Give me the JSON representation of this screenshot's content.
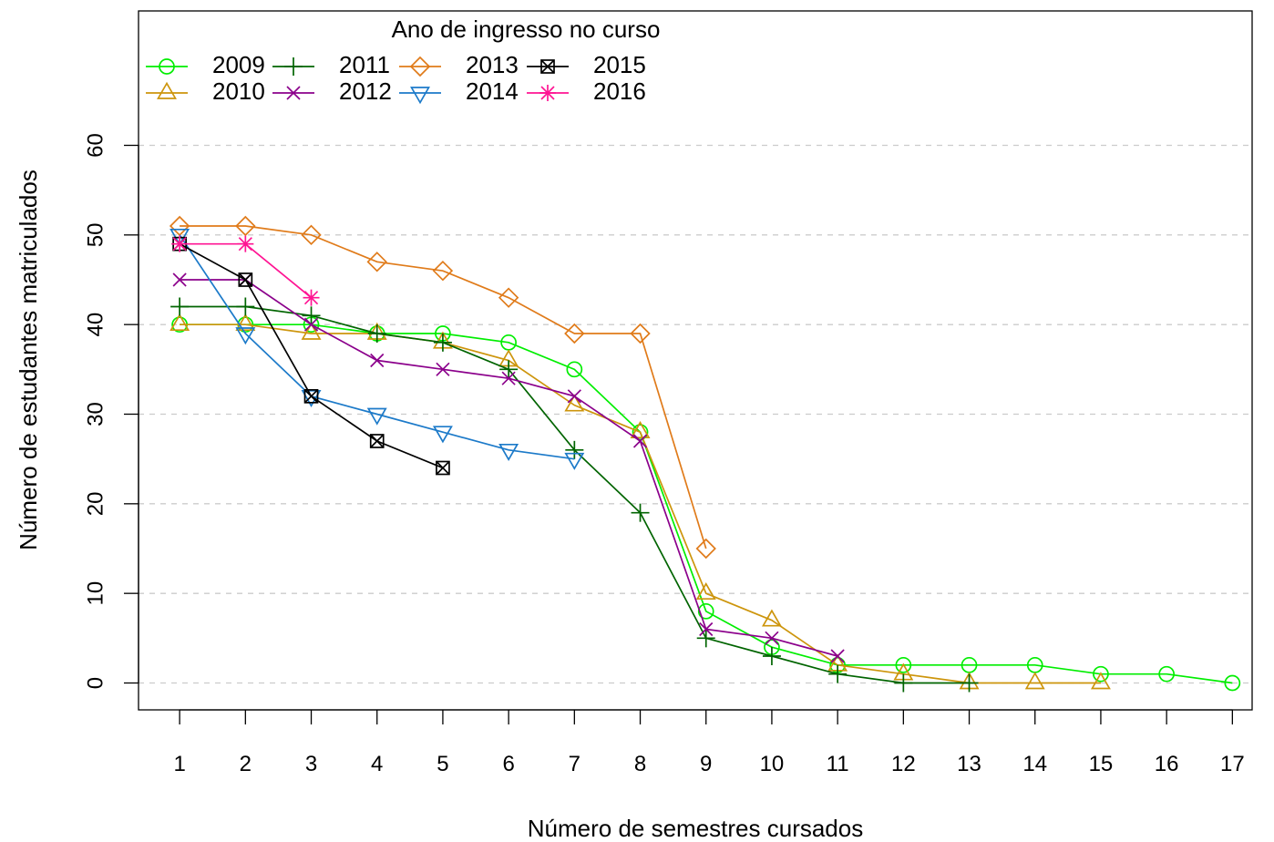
{
  "chart_data": {
    "type": "line",
    "xlabel": "Número de semestres cursados",
    "ylabel": "Número de estudantes matriculados",
    "x": [
      1,
      2,
      3,
      4,
      5,
      6,
      7,
      8,
      9,
      10,
      11,
      12,
      13,
      14,
      15,
      16,
      17
    ],
    "xlim": [
      0.375,
      17.3
    ],
    "ylim": [
      -3,
      75
    ],
    "yticks": [
      0,
      10,
      20,
      30,
      40,
      50,
      60
    ],
    "grid": "horizontal dashed",
    "legend": {
      "title": "Ano de ingresso no curso",
      "placement": "top-left"
    },
    "series": [
      {
        "name": "2009",
        "color": "#00ee00",
        "marker": "circle",
        "values": [
          40,
          40,
          40,
          39,
          39,
          38,
          35,
          28,
          8,
          4,
          2,
          2,
          2,
          2,
          1,
          1,
          0
        ]
      },
      {
        "name": "2010",
        "color": "#cd950c",
        "marker": "triangle-up",
        "values": [
          40,
          40,
          39,
          39,
          38,
          36,
          31,
          28,
          10,
          7,
          2,
          1,
          0,
          0,
          0,
          null,
          null
        ]
      },
      {
        "name": "2011",
        "color": "#006400",
        "marker": "plus",
        "values": [
          42,
          42,
          41,
          39,
          38,
          35,
          26,
          19,
          5,
          3,
          1,
          0,
          0,
          null,
          null,
          null,
          null
        ]
      },
      {
        "name": "2012",
        "color": "#8b008b",
        "marker": "cross",
        "values": [
          45,
          45,
          40,
          36,
          35,
          34,
          32,
          27,
          6,
          5,
          3,
          null,
          null,
          null,
          null,
          null,
          null
        ]
      },
      {
        "name": "2013",
        "color": "#e07b1a",
        "marker": "diamond",
        "values": [
          51,
          51,
          50,
          47,
          46,
          43,
          39,
          39,
          15,
          null,
          null,
          null,
          null,
          null,
          null,
          null,
          null
        ]
      },
      {
        "name": "2014",
        "color": "#1c7ac9",
        "marker": "triangle-down",
        "values": [
          50,
          39,
          32,
          30,
          28,
          26,
          25,
          null,
          null,
          null,
          null,
          null,
          null,
          null,
          null,
          null,
          null
        ]
      },
      {
        "name": "2015",
        "color": "#000000",
        "marker": "boxed-x",
        "values": [
          49,
          45,
          32,
          27,
          24,
          null,
          null,
          null,
          null,
          null,
          null,
          null,
          null,
          null,
          null,
          null,
          null
        ]
      },
      {
        "name": "2016",
        "color": "#ff1493",
        "marker": "asterisk",
        "values": [
          49,
          49,
          43,
          null,
          null,
          null,
          null,
          null,
          null,
          null,
          null,
          null,
          null,
          null,
          null,
          null,
          null
        ]
      }
    ]
  }
}
